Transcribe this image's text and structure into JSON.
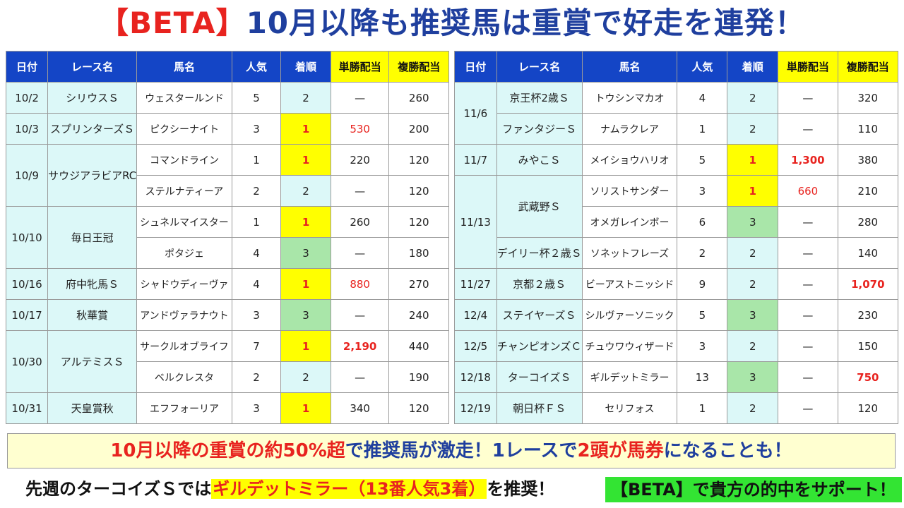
{
  "title": {
    "beta": "【BETA】",
    "rest": "10月以降も推奨馬は重賞で好走を連発！"
  },
  "table_headers": [
    "日付",
    "レース名",
    "馬名",
    "人気",
    "着順",
    "単勝配当",
    "複勝配当"
  ],
  "left_rows": [
    {
      "date": "10/2",
      "race": "シリウスＳ",
      "horse": "ウェスタールンド",
      "pop": "5",
      "pos": "2",
      "win": "—",
      "place": "260"
    },
    {
      "date": "10/3",
      "race": "スプリンターズＳ",
      "horse": "ピクシーナイト",
      "pop": "3",
      "pos": "1",
      "win": "530",
      "place": "200"
    },
    {
      "date": "10/9",
      "race": "サウジアラビアRC",
      "horse": "コマンドライン",
      "pop": "1",
      "pos": "1",
      "win": "220",
      "place": "120"
    },
    {
      "horse": "ステルナティーア",
      "pop": "2",
      "pos": "2",
      "win": "—",
      "place": "120"
    },
    {
      "date": "10/10",
      "race": "毎日王冠",
      "horse": "シュネルマイスター",
      "pop": "1",
      "pos": "1",
      "win": "260",
      "place": "120"
    },
    {
      "horse": "ポタジェ",
      "pop": "4",
      "pos": "3",
      "win": "—",
      "place": "180"
    },
    {
      "date": "10/16",
      "race": "府中牝馬Ｓ",
      "horse": "シャドウディーヴァ",
      "pop": "4",
      "pos": "1",
      "win": "880",
      "place": "270"
    },
    {
      "date": "10/17",
      "race": "秋華賞",
      "horse": "アンドヴァラナウト",
      "pop": "3",
      "pos": "3",
      "win": "—",
      "place": "240"
    },
    {
      "date": "10/30",
      "race": "アルテミスＳ",
      "horse": "サークルオブライフ",
      "pop": "7",
      "pos": "1",
      "win": "2,190",
      "place": "440"
    },
    {
      "horse": "ベルクレスタ",
      "pop": "2",
      "pos": "2",
      "win": "—",
      "place": "190"
    },
    {
      "date": "10/31",
      "race": "天皇賞秋",
      "horse": "エフフォーリア",
      "pop": "3",
      "pos": "1",
      "win": "340",
      "place": "120"
    }
  ],
  "right_rows": [
    {
      "date": "11/6",
      "race": "京王杯2歳Ｓ",
      "horse": "トウシンマカオ",
      "pop": "4",
      "pos": "2",
      "win": "—",
      "place": "320"
    },
    {
      "race": "ファンタジーＳ",
      "horse": "ナムラクレア",
      "pop": "1",
      "pos": "2",
      "win": "—",
      "place": "110"
    },
    {
      "date": "11/7",
      "race": "みやこＳ",
      "horse": "メイショウハリオ",
      "pop": "5",
      "pos": "1",
      "win": "1,300",
      "place": "380"
    },
    {
      "date": "11/13",
      "race": "武蔵野Ｓ",
      "horse": "ソリストサンダー",
      "pop": "3",
      "pos": "1",
      "win": "660",
      "place": "210"
    },
    {
      "horse": "オメガレインボー",
      "pop": "6",
      "pos": "3",
      "win": "—",
      "place": "280"
    },
    {
      "race": "デイリー杯２歳Ｓ",
      "horse": "ソネットフレーズ",
      "pop": "2",
      "pos": "2",
      "win": "—",
      "place": "140"
    },
    {
      "date": "11/27",
      "race": "京都２歳Ｓ",
      "horse": "ビーアストニッシド",
      "pop": "9",
      "pos": "2",
      "win": "—",
      "place": "1,070"
    },
    {
      "date": "12/4",
      "race": "ステイヤーズＳ",
      "horse": "シルヴァーソニック",
      "pop": "5",
      "pos": "3",
      "win": "—",
      "place": "230"
    },
    {
      "date": "12/5",
      "race": "チャンピオンズＣ",
      "horse": "チュウワウィザード",
      "pop": "3",
      "pos": "2",
      "win": "—",
      "place": "150"
    },
    {
      "date": "12/18",
      "race": "ターコイズＳ",
      "horse": "ギルデットミラー",
      "pop": "13",
      "pos": "3",
      "win": "—",
      "place": "750"
    },
    {
      "date": "12/19",
      "race": "朝日杯ＦＳ",
      "horse": "セリフォス",
      "pop": "1",
      "pos": "2",
      "win": "—",
      "place": "120"
    }
  ],
  "banner": {
    "p1": "10月以降の重賞の約50%超",
    "p2": "で推奨馬が激走！1レースで",
    "p3": "2頭が馬券",
    "p4": "になることも！"
  },
  "footer": {
    "p1": "先週のターコイズＳでは",
    "p2": "ギルデットミラー（13番人気3着）",
    "p3": "を推奨！",
    "p4": "【BETA】で貴方の的中をサポート！"
  },
  "colors": {
    "header_blue": "#1445c6",
    "header_yellow": "#ffff00",
    "cell_cyan": "#dcf8f8",
    "first_place": "#ffff00",
    "third_place": "#a9e6a9",
    "accent_red": "#e8231f",
    "title_blue": "#1f3f9e",
    "highlight_green": "#33e433"
  }
}
